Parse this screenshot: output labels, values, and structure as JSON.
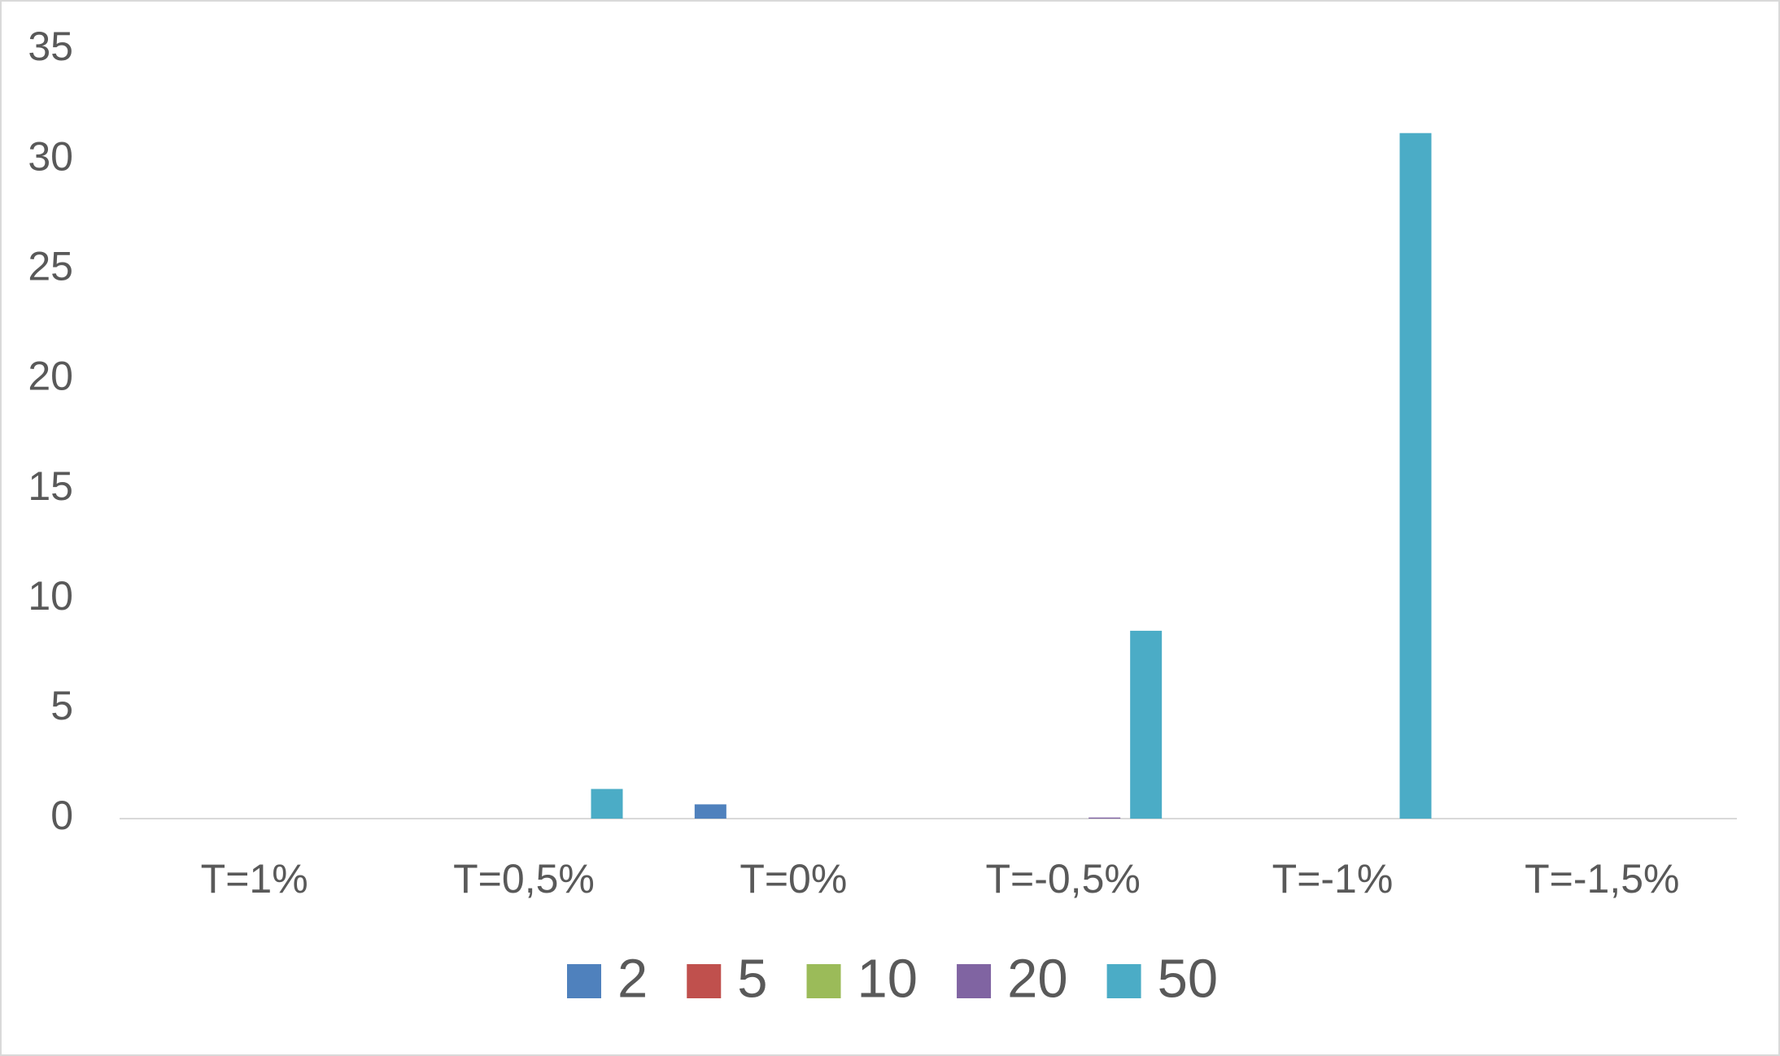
{
  "chart_data": {
    "type": "bar",
    "categories": [
      "T=1%",
      "T=0,5%",
      "T=0%",
      "T=-0,5%",
      "T=-1%",
      "T=-1,5%"
    ],
    "series": [
      {
        "name": "2",
        "color": "#4f81bd",
        "values": [
          0,
          0,
          0.65,
          0,
          0,
          0
        ]
      },
      {
        "name": "5",
        "color": "#c0504d",
        "values": [
          0,
          0,
          0,
          0,
          0,
          0
        ]
      },
      {
        "name": "10",
        "color": "#9bbb59",
        "values": [
          0,
          0,
          0,
          0,
          0,
          0
        ]
      },
      {
        "name": "20",
        "color": "#8064a2",
        "values": [
          0,
          0,
          0,
          0.05,
          0,
          0
        ]
      },
      {
        "name": "50",
        "color": "#4bacc6",
        "values": [
          0,
          1.35,
          0,
          8.55,
          31.2,
          0
        ]
      }
    ],
    "ylim": [
      0,
      35
    ],
    "yticks": [
      0,
      5,
      10,
      15,
      20,
      25,
      30,
      35
    ],
    "grid": false,
    "legend": "bottom"
  }
}
